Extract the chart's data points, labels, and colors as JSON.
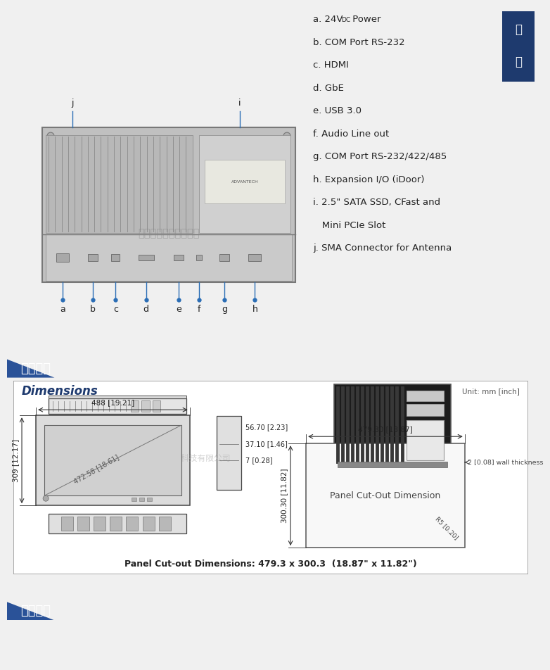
{
  "bg_color": "#f0f0f0",
  "white": "#ffffff",
  "section_header_bg": "#1e3a6e",
  "section_header_light": "#2a5298",
  "badge_bg": "#1e3a6e",
  "blue_arrow": "#2a6db5",
  "specs": [
    [
      "a. 24V",
      "DC",
      " Power"
    ],
    [
      "b. COM Port RS-232",
      "",
      ""
    ],
    [
      "c. HDMI",
      "",
      ""
    ],
    [
      "d. GbE",
      "",
      ""
    ],
    [
      "e. USB 3.0",
      "",
      ""
    ],
    [
      "f. Audio Line out",
      "",
      ""
    ],
    [
      "g. COM Port RS-232/422/485",
      "",
      ""
    ],
    [
      "h. Expansion I/O (iDoor)",
      "",
      ""
    ],
    [
      "i. 2.5\" SATA SSD, CFast and",
      "",
      ""
    ],
    [
      "   Mini PCIe Slot",
      "",
      ""
    ],
    [
      "j. SMA Connector for Antenna",
      "",
      ""
    ]
  ],
  "section2_title": "产品参数",
  "section3_title": "产品配置",
  "dim_title": "Dimensions",
  "dim_unit": "Unit: mm [inch]",
  "dim_width": "488 [19.21]",
  "dim_height": "309 [12.17]",
  "dim_diagonal": "472.58 [18.61]",
  "dim_side_h1": "56.70 [2.23]",
  "dim_side_h2": "37.10 [1.46]",
  "dim_side_h3": "7 [0.28]",
  "dim_cutout_w": "479.30 [18.87]",
  "dim_cutout_h": "300.30 [11.82]",
  "dim_wall": "2 [0.08] wall thickness",
  "dim_radius": "R5 [0.20]",
  "cutout_text": "Panel Cut-Out Dimension",
  "cutout_dims_text": "Panel Cut-out Dimensions: 479.3 x 300.3  (18.87\" x 11.82\")",
  "watermark": "深圳硕远科技有限公司"
}
